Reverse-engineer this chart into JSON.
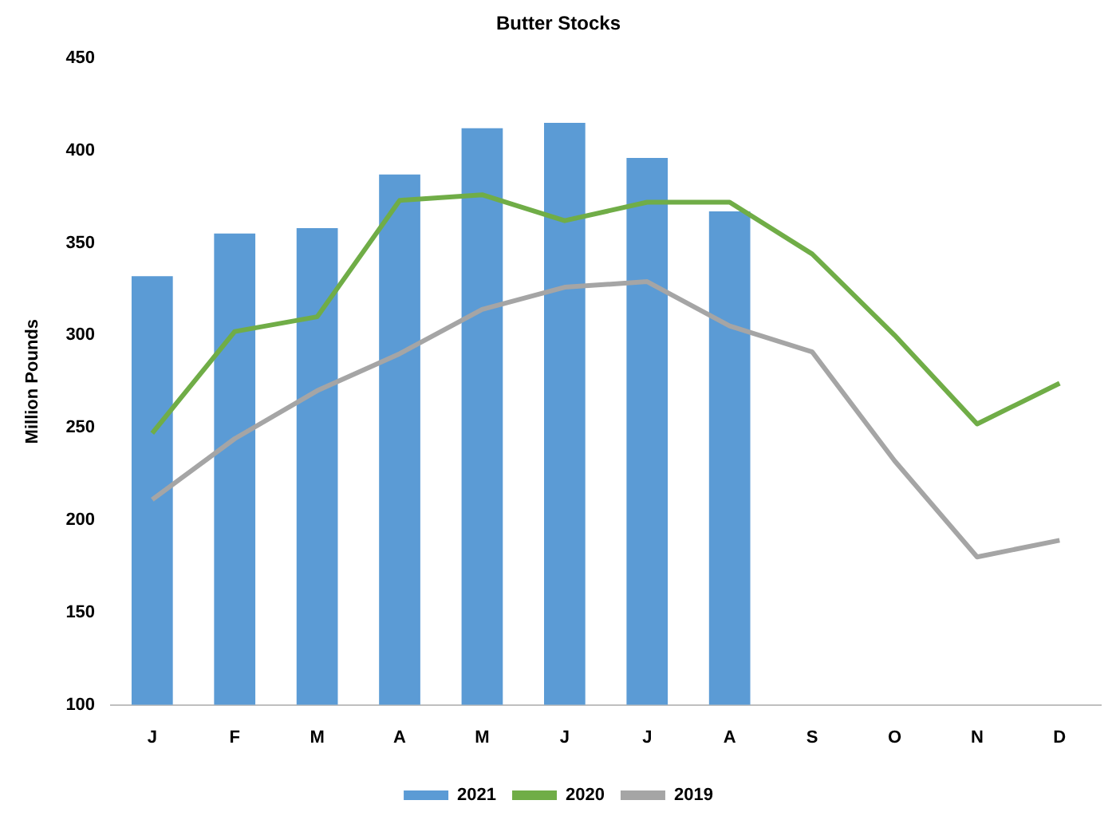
{
  "chart_data": {
    "type": "bar",
    "title": "Butter Stocks",
    "ylabel": "Million Pounds",
    "categories": [
      "J",
      "F",
      "M",
      "A",
      "M",
      "J",
      "J",
      "A",
      "S",
      "O",
      "N",
      "D"
    ],
    "series": [
      {
        "name": "2021",
        "color": "#5b9bd5",
        "values": [
          332,
          355,
          358,
          387,
          412,
          415,
          396,
          367,
          null,
          null,
          null,
          null
        ]
      },
      {
        "name": "2020",
        "type": "line",
        "color": "#70ad47",
        "values": [
          247,
          302,
          310,
          373,
          376,
          362,
          372,
          372,
          344,
          300,
          252,
          274
        ]
      },
      {
        "name": "2019",
        "type": "line",
        "color": "#a5a5a5",
        "values": [
          211,
          244,
          270,
          290,
          314,
          326,
          329,
          305,
          291,
          232,
          180,
          189
        ]
      }
    ],
    "ylim": [
      100,
      450
    ],
    "yticks": [
      100,
      150,
      200,
      250,
      300,
      350,
      400,
      450
    ],
    "grid": false,
    "legend": "bottom",
    "marker": "none"
  }
}
